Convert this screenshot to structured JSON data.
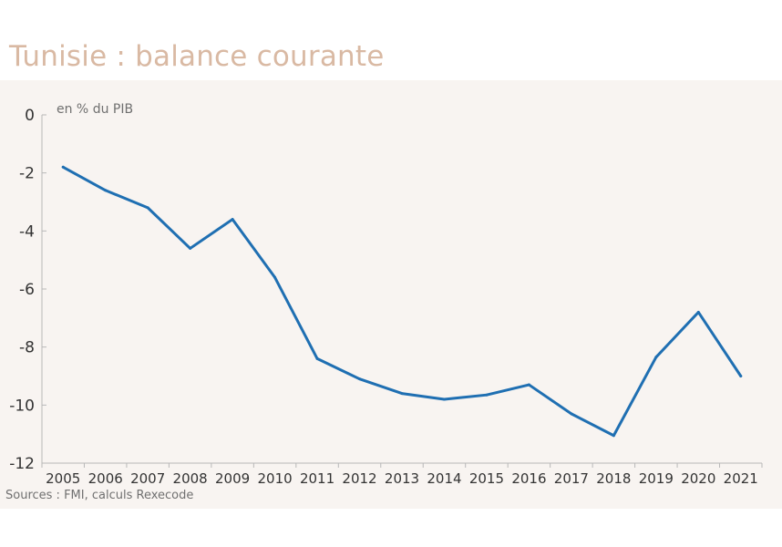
{
  "title": "Tunisie : balance courante",
  "source": "Sources :  FMI, calculs Rexecode",
  "chart_data": {
    "type": "line",
    "title": "Tunisie : balance courante",
    "ylabel": "en % du PIB",
    "xlabel": "",
    "x": [
      "2005",
      "2006",
      "2007",
      "2008",
      "2009",
      "2010",
      "2011",
      "2012",
      "2013",
      "2014",
      "2015",
      "2016",
      "2017",
      "2018",
      "2019",
      "2020",
      "2021"
    ],
    "series": [
      {
        "values": [
          -1.8,
          -2.6,
          -3.2,
          -4.6,
          -3.6,
          -5.6,
          -8.4,
          -9.1,
          -9.6,
          -9.8,
          -9.65,
          -9.3,
          -10.3,
          -11.05,
          -8.35,
          -6.8,
          -9.0
        ]
      }
    ],
    "ylim": [
      -12,
      0
    ],
    "yticks": [
      0,
      -2,
      -4,
      -6,
      -8,
      -10,
      -12
    ],
    "grid": false,
    "line_color": "#1f6fb2"
  }
}
